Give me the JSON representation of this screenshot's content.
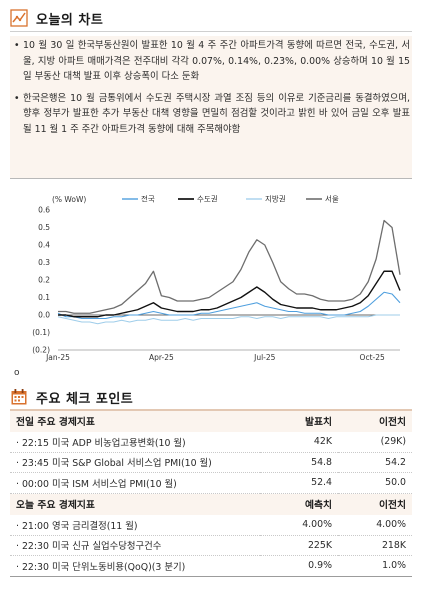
{
  "section1": {
    "title": "오늘의 차트",
    "icon": "chart-line-icon"
  },
  "bullets": [
    "10 월 30 일 한국부동산원이 발표한 10 월 4 주 주간 아파트가격 동향에 따르면 전국, 수도권, 서울, 지방 아파트 매매가격은 전주대비 각각 0.07%, 0.14%, 0.23%, 0.00% 상승하며 10 월 15 일 부동산 대책 발표 이후 상승폭이 다소 둔화",
    "한국은행은 10 월 금통위에서 수도권 주택시장 과열 조짐 등의 이유로 기준금리를 동결하였으며, 향후 정부가 발표한 추가 부동산 대책 영향을 면밀히 점검할 것이라고 밝힌 바 있어 금일 오후 발표될 11 월 1 주 주간 아파트가격 동향에 대해 주목해야함"
  ],
  "chart_data": {
    "type": "line",
    "unit_label": "(% WoW)",
    "y_tick_labels": [
      "0.6",
      "0.5",
      "0.4",
      "0.3",
      "0.2",
      "0.1",
      "0.0",
      "(0.1)",
      "(0.2)"
    ],
    "x_tick_labels": [
      "Jan-25",
      "Apr-25",
      "Jul-25",
      "Oct-25"
    ],
    "ylim": [
      -0.2,
      0.6
    ],
    "xlim": [
      0,
      43
    ],
    "legend_position": "top",
    "series": [
      {
        "name": "전국",
        "color": "#4f9fde",
        "width": 1.1,
        "values": [
          0.01,
          -0.01,
          -0.01,
          -0.02,
          -0.02,
          -0.02,
          -0.02,
          -0.01,
          -0.01,
          0.0,
          0.0,
          0.01,
          0.02,
          0.01,
          0.0,
          0.0,
          0.0,
          0.0,
          0.01,
          0.01,
          0.02,
          0.03,
          0.04,
          0.05,
          0.06,
          0.07,
          0.05,
          0.04,
          0.03,
          0.02,
          0.02,
          0.01,
          0.01,
          0.01,
          0.0,
          0.0,
          0.0,
          0.01,
          0.02,
          0.05,
          0.09,
          0.13,
          0.12,
          0.07
        ]
      },
      {
        "name": "수도권",
        "color": "#111111",
        "width": 1.4,
        "values": [
          0.0,
          0.0,
          -0.01,
          -0.01,
          -0.01,
          -0.01,
          0.0,
          0.0,
          0.01,
          0.02,
          0.03,
          0.05,
          0.07,
          0.04,
          0.03,
          0.02,
          0.02,
          0.02,
          0.03,
          0.03,
          0.04,
          0.06,
          0.08,
          0.1,
          0.13,
          0.16,
          0.13,
          0.09,
          0.06,
          0.05,
          0.04,
          0.04,
          0.04,
          0.03,
          0.03,
          0.03,
          0.04,
          0.05,
          0.07,
          0.11,
          0.18,
          0.25,
          0.25,
          0.14
        ]
      },
      {
        "name": "지방권",
        "color": "#9fcdea",
        "width": 1.0,
        "values": [
          -0.01,
          -0.02,
          -0.03,
          -0.04,
          -0.04,
          -0.05,
          -0.04,
          -0.04,
          -0.03,
          -0.04,
          -0.03,
          -0.03,
          -0.02,
          -0.03,
          -0.03,
          -0.03,
          -0.02,
          -0.03,
          -0.02,
          -0.02,
          -0.02,
          -0.02,
          -0.02,
          -0.01,
          -0.01,
          -0.02,
          -0.01,
          -0.01,
          -0.02,
          -0.01,
          -0.01,
          -0.01,
          -0.01,
          -0.01,
          -0.02,
          -0.01,
          -0.01,
          -0.01,
          -0.01,
          -0.01,
          0.0,
          0.0,
          0.0,
          0.0
        ]
      },
      {
        "name": "서울",
        "color": "#6e6e6e",
        "width": 1.3,
        "values": [
          0.02,
          0.02,
          0.01,
          0.01,
          0.01,
          0.02,
          0.03,
          0.04,
          0.06,
          0.1,
          0.14,
          0.18,
          0.25,
          0.11,
          0.1,
          0.08,
          0.08,
          0.08,
          0.09,
          0.1,
          0.13,
          0.16,
          0.19,
          0.26,
          0.36,
          0.43,
          0.4,
          0.3,
          0.19,
          0.15,
          0.12,
          0.12,
          0.11,
          0.09,
          0.08,
          0.08,
          0.08,
          0.09,
          0.12,
          0.19,
          0.32,
          0.54,
          0.5,
          0.23
        ]
      }
    ]
  },
  "note_mark": "o",
  "section2": {
    "title": "주요 체크 포인트",
    "icon": "calendar-icon"
  },
  "table_prev": {
    "headers": [
      "전일 주요 경제지표",
      "발표치",
      "이전치"
    ],
    "rows": [
      {
        "name": "· 22:15  미국  ADP 비농업고용변화(10 월)",
        "actual": "42K",
        "prev": "(29K)"
      },
      {
        "name": "· 23:45  미국  S&P Global 서비스업 PMI(10 월)",
        "actual": "54.8",
        "prev": "54.2"
      },
      {
        "name": "· 00:00  미국  ISM 서비스업 PMI(10 월)",
        "actual": "52.4",
        "prev": "50.0"
      }
    ]
  },
  "table_today": {
    "headers": [
      "오늘 주요 경제지표",
      "예측치",
      "이전치"
    ],
    "rows": [
      {
        "name": "· 21:00  영국  금리결정(11 월)",
        "forecast": "4.00%",
        "prev": "4.00%"
      },
      {
        "name": "· 22:30  미국  신규 실업수당청구건수",
        "forecast": "225K",
        "prev": "218K"
      },
      {
        "name": "· 22:30  미국  단위노동비용(QoQ)(3 분기)",
        "forecast": "0.9%",
        "prev": "1.0%"
      }
    ]
  }
}
